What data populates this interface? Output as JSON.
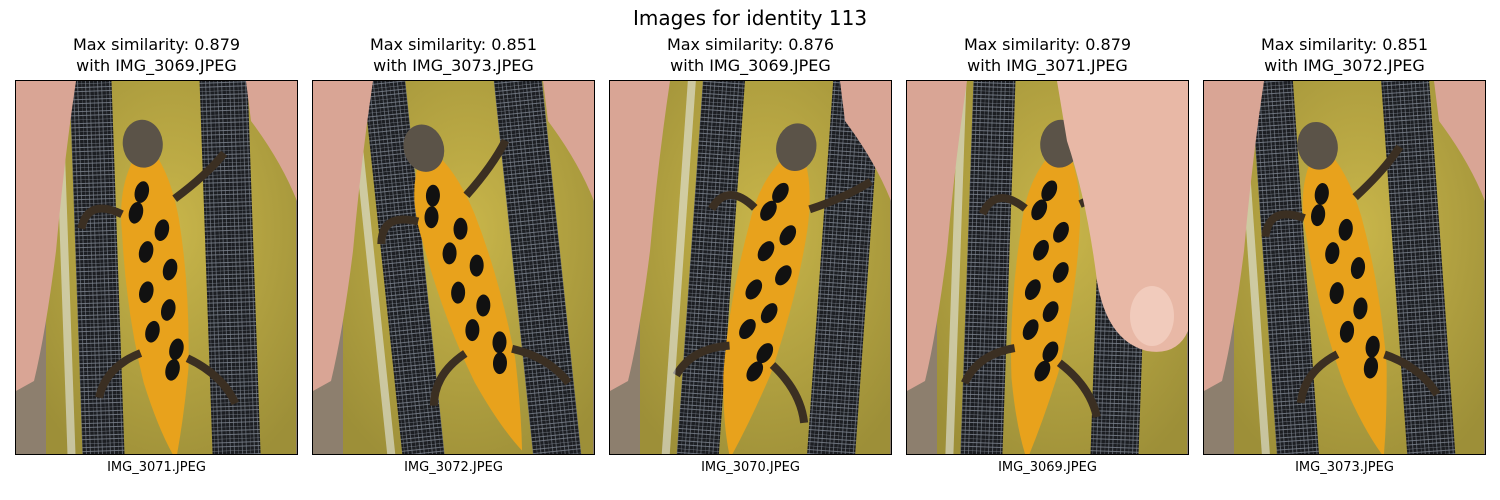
{
  "figure": {
    "title": "Images for identity 113"
  },
  "panels": [
    {
      "title_line1": "Max similarity: 0.879",
      "title_line2": "with IMG_3069.JPEG",
      "filename": "IMG_3071.JPEG",
      "thumb_icon": "newt-photo"
    },
    {
      "title_line1": "Max similarity: 0.851",
      "title_line2": "with IMG_3073.JPEG",
      "filename": "IMG_3072.JPEG",
      "thumb_icon": "newt-photo"
    },
    {
      "title_line1": "Max similarity: 0.876",
      "title_line2": "with IMG_3069.JPEG",
      "filename": "IMG_3070.JPEG",
      "thumb_icon": "newt-photo"
    },
    {
      "title_line1": "Max similarity: 0.879",
      "title_line2": "with IMG_3071.JPEG",
      "filename": "IMG_3069.JPEG",
      "thumb_icon": "newt-photo"
    },
    {
      "title_line1": "Max similarity: 0.851",
      "title_line2": "with IMG_3072.JPEG",
      "filename": "IMG_3073.JPEG",
      "thumb_icon": "newt-photo"
    }
  ]
}
